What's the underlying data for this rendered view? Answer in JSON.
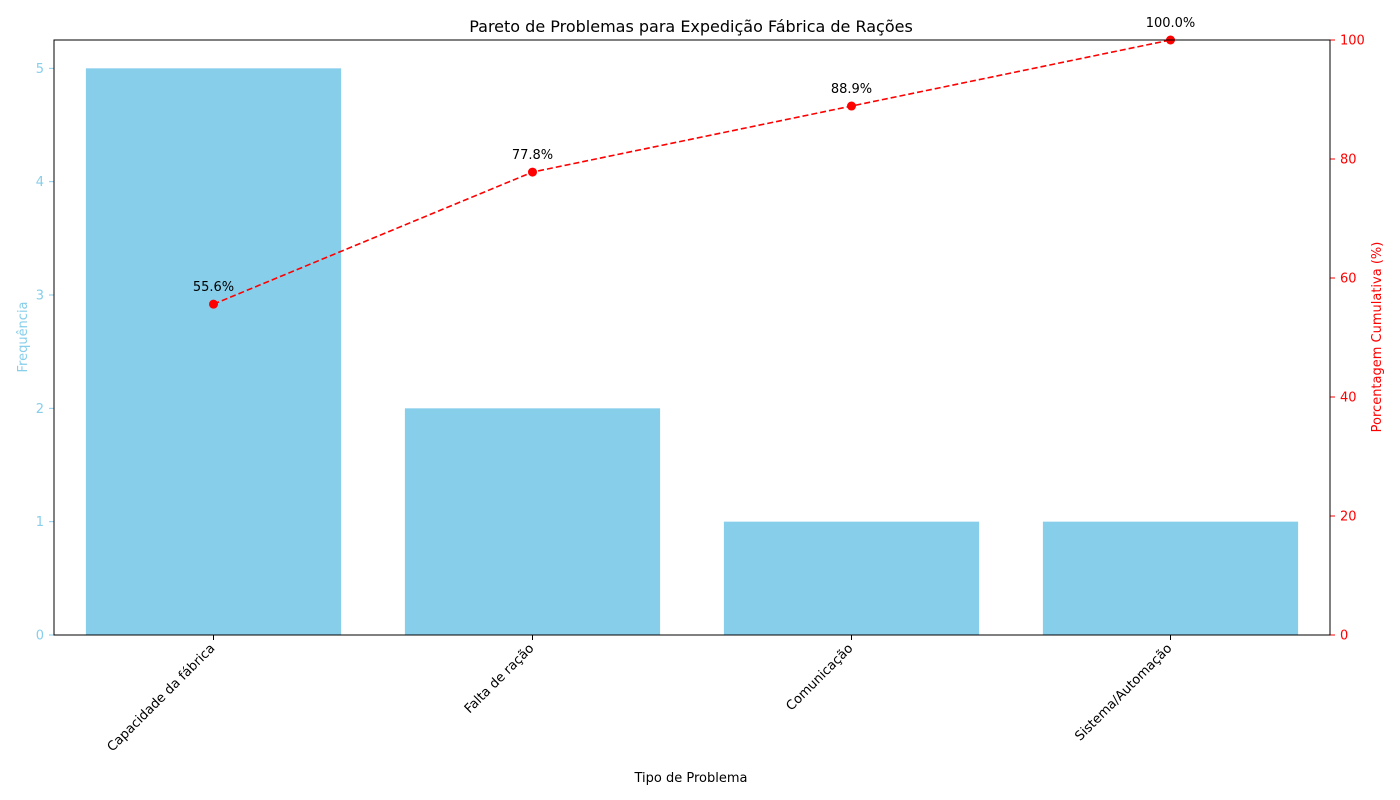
{
  "chart_data": {
    "type": "bar",
    "title": "Pareto de Problemas para Expedição Fábrica de Rações",
    "xlabel": "Tipo de Problema",
    "ylabel": "Frequência",
    "y2label": "Porcentagem Cumulativa (%)",
    "categories": [
      "Capacidade da fábrica",
      "Falta de ração",
      "Comunicação",
      "Sistema/Automação"
    ],
    "series": [
      {
        "type": "bar",
        "values": [
          5,
          2,
          1,
          1
        ],
        "axis": "left",
        "color": "#87ceeb"
      },
      {
        "type": "line",
        "values": [
          55.6,
          77.8,
          88.9,
          100.0
        ],
        "axis": "right",
        "color": "#ff0000",
        "style": "dashed",
        "marker": "circle"
      }
    ],
    "line_labels": [
      "55.6%",
      "77.8%",
      "88.9%",
      "100.0%"
    ],
    "ylim": [
      0,
      5.25
    ],
    "y2lim": [
      0,
      100
    ],
    "yticks": [
      "0",
      "1",
      "2",
      "3",
      "4",
      "5"
    ],
    "y2ticks": [
      "0",
      "20",
      "40",
      "60",
      "80",
      "100"
    ],
    "grid": false,
    "legend": "none"
  }
}
